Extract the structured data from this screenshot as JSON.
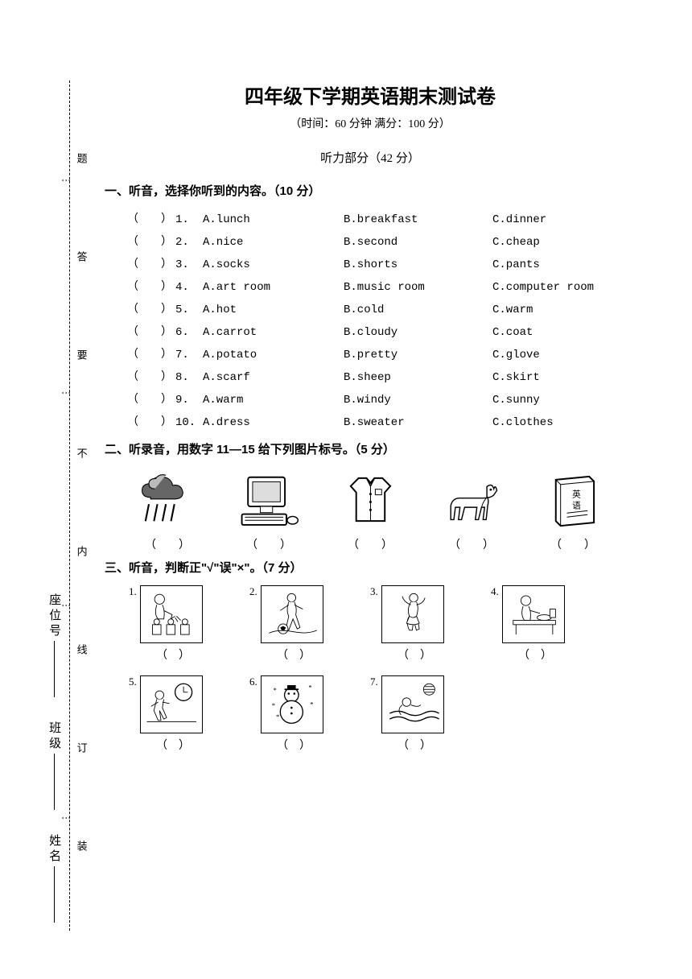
{
  "title": "四年级下学期英语期末测试卷",
  "subtitle": "（时间：60 分钟  满分：100 分）",
  "section_label": "听力部分（42 分）",
  "sidebar": {
    "fields": [
      {
        "label": "座位号"
      },
      {
        "label": "班级"
      },
      {
        "label": "姓名"
      }
    ],
    "dashed_markers": [
      "题",
      "答",
      "要",
      "不",
      "内",
      "线",
      "订",
      "装"
    ]
  },
  "q1": {
    "heading": "一、听音，选择你听到的内容。（10 分）",
    "paren": "（　　）",
    "rows": [
      {
        "n": "1.",
        "a": "A.lunch",
        "b": "B.breakfast",
        "c": "C.dinner"
      },
      {
        "n": "2.",
        "a": "A.nice",
        "b": "B.second",
        "c": "C.cheap"
      },
      {
        "n": "3.",
        "a": "A.socks",
        "b": "B.shorts",
        "c": "C.pants"
      },
      {
        "n": "4.",
        "a": "A.art room",
        "b": "B.music room",
        "c": "C.computer room"
      },
      {
        "n": "5.",
        "a": "A.hot",
        "b": "B.cold",
        "c": "C.warm"
      },
      {
        "n": "6.",
        "a": "A.carrot",
        "b": "B.cloudy",
        "c": "C.coat"
      },
      {
        "n": "7.",
        "a": "A.potato",
        "b": "B.pretty",
        "c": "C.glove"
      },
      {
        "n": "8.",
        "a": "A.scarf",
        "b": "B.sheep",
        "c": "C.skirt"
      },
      {
        "n": "9.",
        "a": "A.warm",
        "b": "B.windy",
        "c": "C.sunny"
      },
      {
        "n": "10.",
        "a": "A.dress",
        "b": "B.sweater",
        "c": "C.clothes"
      }
    ]
  },
  "q2": {
    "heading": "二、听录音，用数字 11—15 给下列图片标号。（5 分）",
    "answer": "（　　）",
    "images": [
      "rain-cloud",
      "computer",
      "shirt",
      "horse",
      "english-book"
    ]
  },
  "q3": {
    "heading": "三、听音，判断正\"√\"误\"×\"。（7 分）",
    "answer": "（　）",
    "items": [
      {
        "n": "1.",
        "img": "water-flowers"
      },
      {
        "n": "2.",
        "img": "play-football"
      },
      {
        "n": "3.",
        "img": "dancing-girl"
      },
      {
        "n": "4.",
        "img": "eating-boy"
      },
      {
        "n": "5.",
        "img": "boy-clock"
      },
      {
        "n": "6.",
        "img": "snowman"
      },
      {
        "n": "7.",
        "img": "swimming"
      }
    ]
  }
}
